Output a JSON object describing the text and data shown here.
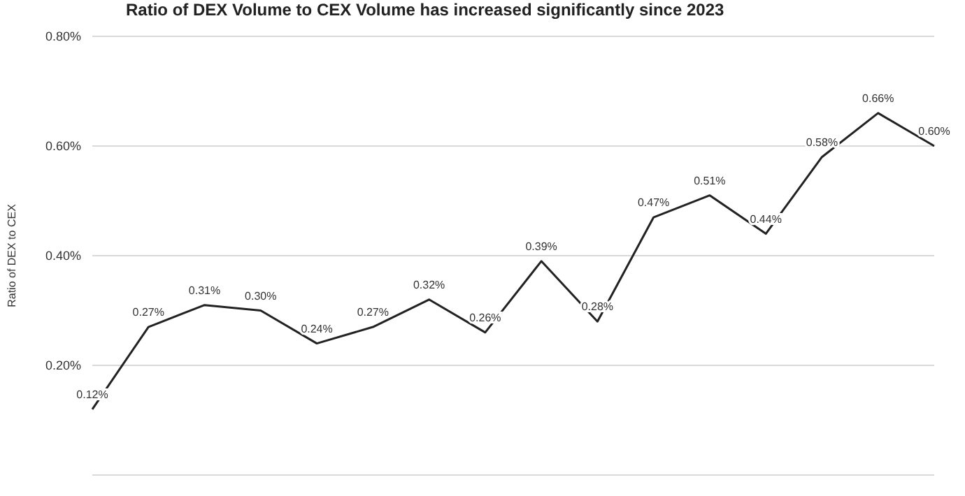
{
  "chart_data": {
    "type": "line",
    "title": "Ratio of DEX Volume to CEX Volume has increased significantly since 2023",
    "ylabel": "Ratio of DEX to CEX",
    "categories": [
      null,
      null,
      null,
      null,
      null,
      null,
      null,
      null,
      null,
      null,
      null,
      null,
      null,
      null,
      null,
      null
    ],
    "series": [
      {
        "color": "#222222",
        "values": [
          0.12,
          0.27,
          0.31,
          0.3,
          0.24,
          0.27,
          0.32,
          0.26,
          0.39,
          0.28,
          0.47,
          0.51,
          0.44,
          0.58,
          0.66,
          0.6
        ]
      }
    ],
    "value_labels": [
      "0.12%",
      "0.27%",
      "0.31%",
      "0.30%",
      "0.24%",
      "0.27%",
      "0.32%",
      "0.26%",
      "0.39%",
      "0.28%",
      "0.47%",
      "0.51%",
      "0.44%",
      "0.58%",
      "0.66%",
      "0.60%"
    ],
    "ylim": [
      0,
      0.8
    ],
    "yticks": [
      {
        "value": 0.2,
        "label": "0.20%"
      },
      {
        "value": 0.4,
        "label": "0.40%"
      },
      {
        "value": 0.6,
        "label": "0.60%"
      },
      {
        "value": 0.8,
        "label": "0.80%"
      }
    ],
    "grid": "y",
    "marker": "none",
    "line_style": "solid",
    "tick_labels": "y"
  }
}
